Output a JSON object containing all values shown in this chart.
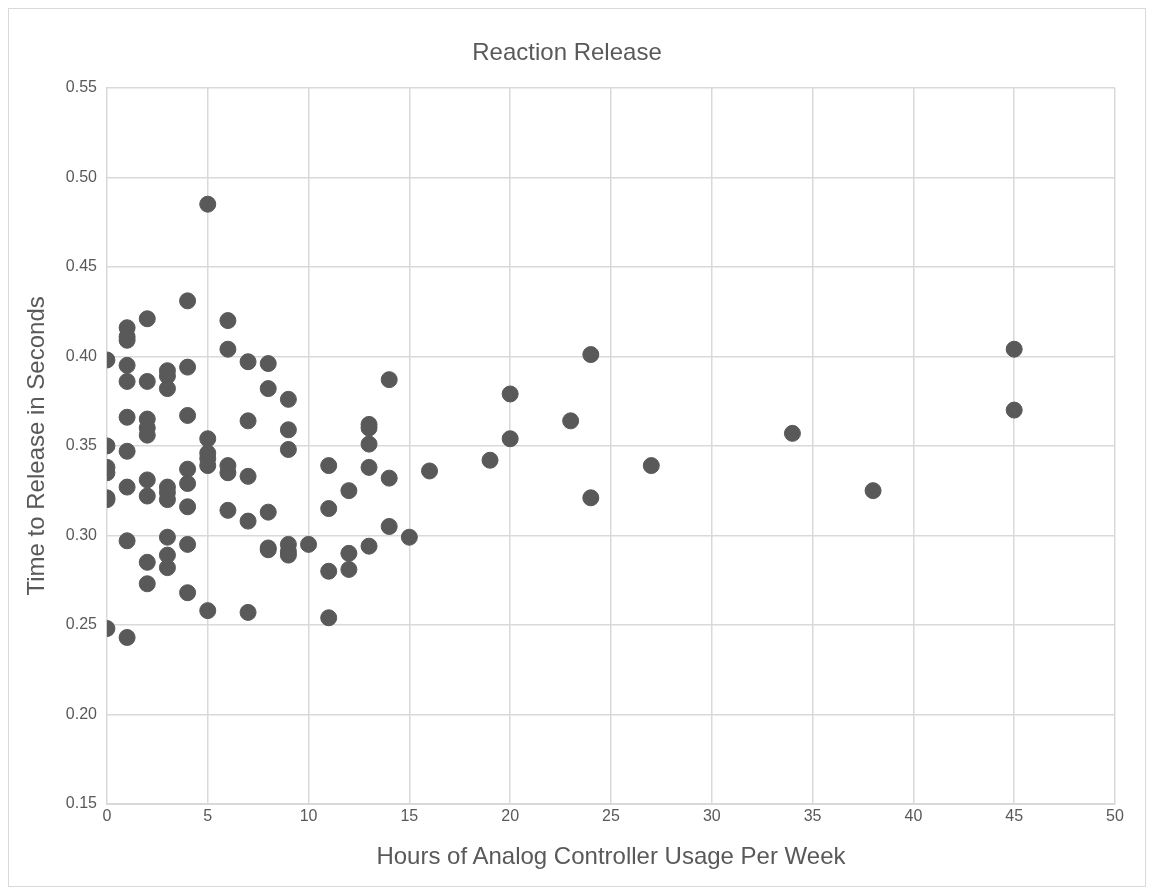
{
  "chart_data": {
    "type": "scatter",
    "title": "Reaction Release",
    "xlabel": "Hours of Analog Controller Usage Per Week",
    "ylabel": "Time to Release in Seconds",
    "x": [
      0,
      0,
      0,
      0,
      0,
      0,
      0,
      1,
      1,
      1,
      1,
      1,
      1,
      1,
      1,
      1,
      1,
      2,
      2,
      2,
      2,
      2,
      2,
      2,
      2,
      2,
      3,
      3,
      3,
      3,
      3,
      3,
      3,
      3,
      3,
      4,
      4,
      4,
      4,
      4,
      4,
      4,
      4,
      5,
      5,
      5,
      5,
      5,
      5,
      6,
      6,
      6,
      6,
      6,
      7,
      7,
      7,
      7,
      7,
      8,
      8,
      8,
      8,
      8,
      9,
      9,
      9,
      9,
      9,
      9,
      10,
      11,
      11,
      11,
      11,
      12,
      12,
      12,
      13,
      13,
      13,
      13,
      13,
      14,
      14,
      14,
      15,
      16,
      19,
      20,
      20,
      23,
      24,
      24,
      27,
      34,
      38,
      45,
      45
    ],
    "values": [
      0.398,
      0.35,
      0.338,
      0.335,
      0.321,
      0.32,
      0.248,
      0.416,
      0.411,
      0.409,
      0.395,
      0.386,
      0.366,
      0.347,
      0.327,
      0.297,
      0.243,
      0.421,
      0.386,
      0.365,
      0.36,
      0.356,
      0.331,
      0.322,
      0.285,
      0.273,
      0.392,
      0.389,
      0.382,
      0.327,
      0.324,
      0.32,
      0.299,
      0.289,
      0.282,
      0.431,
      0.394,
      0.367,
      0.337,
      0.329,
      0.316,
      0.295,
      0.268,
      0.485,
      0.354,
      0.346,
      0.343,
      0.339,
      0.258,
      0.42,
      0.404,
      0.339,
      0.335,
      0.314,
      0.397,
      0.364,
      0.333,
      0.308,
      0.257,
      0.396,
      0.382,
      0.313,
      0.293,
      0.292,
      0.376,
      0.359,
      0.348,
      0.295,
      0.291,
      0.289,
      0.295,
      0.339,
      0.315,
      0.28,
      0.254,
      0.325,
      0.29,
      0.281,
      0.362,
      0.36,
      0.351,
      0.338,
      0.294,
      0.387,
      0.332,
      0.305,
      0.299,
      0.336,
      0.342,
      0.379,
      0.354,
      0.364,
      0.401,
      0.321,
      0.339,
      0.357,
      0.325,
      0.404,
      0.37
    ],
    "color": "#595959",
    "marker": "circle",
    "xlim": [
      0,
      50
    ],
    "xticks": [
      0,
      5,
      10,
      15,
      20,
      25,
      30,
      35,
      40,
      45,
      50
    ],
    "ylim": [
      0.15,
      0.55
    ],
    "yticks": [
      {
        "value": 0.15,
        "label": "0.15"
      },
      {
        "value": 0.2,
        "label": "0.20"
      },
      {
        "value": 0.25,
        "label": "0.25"
      },
      {
        "value": 0.3,
        "label": "0.30"
      },
      {
        "value": 0.35,
        "label": "0.35"
      },
      {
        "value": 0.4,
        "label": "0.40"
      },
      {
        "value": 0.45,
        "label": "0.45"
      },
      {
        "value": 0.5,
        "label": "0.50"
      },
      {
        "value": 0.55,
        "label": "0.55"
      }
    ],
    "grid": true,
    "legend": false
  }
}
